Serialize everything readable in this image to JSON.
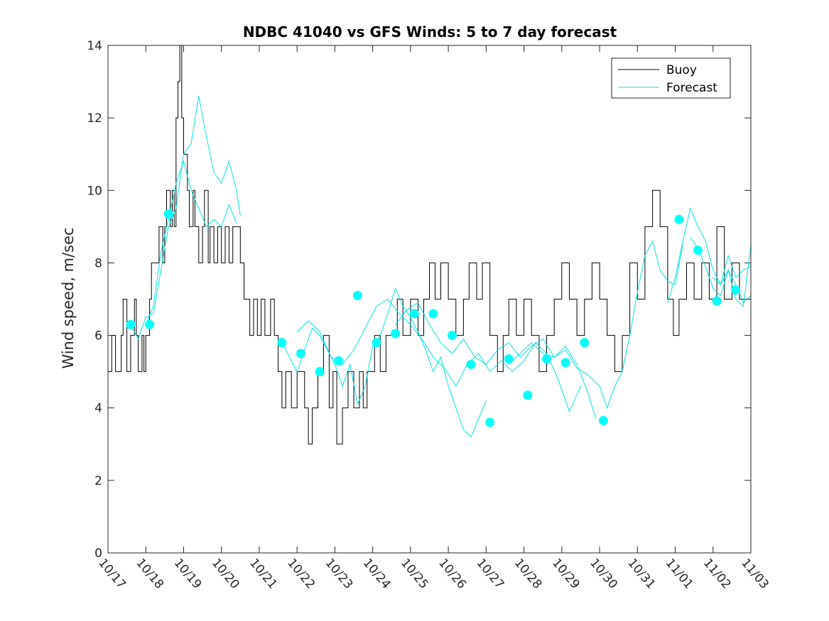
{
  "chart_data": {
    "type": "line",
    "title": "NDBC 41040 vs GFS Winds: 5 to 7 day forecast",
    "xlabel": "",
    "ylabel": "Wind speed, m/sec",
    "xlim": [
      0,
      17
    ],
    "ylim": [
      0,
      14
    ],
    "x_tick_labels": [
      "10/17",
      "10/18",
      "10/19",
      "10/20",
      "10/21",
      "10/22",
      "10/23",
      "10/24",
      "10/25",
      "10/26",
      "10/27",
      "10/28",
      "10/29",
      "10/30",
      "10/31",
      "11/01",
      "11/02",
      "11/03"
    ],
    "y_ticks": [
      0,
      2,
      4,
      6,
      8,
      10,
      12,
      14
    ],
    "legend": {
      "position": "top-right",
      "entries": [
        {
          "label": "Buoy",
          "color": "#000000"
        },
        {
          "label": "Forecast",
          "color": "#00e5e5"
        }
      ]
    },
    "colors": {
      "buoy": "#000000",
      "forecast": "#00e5e5",
      "marker": "#00ffff"
    },
    "series": [
      {
        "name": "Buoy",
        "points": [
          [
            0,
            5
          ],
          [
            0.1,
            6
          ],
          [
            0.2,
            5
          ],
          [
            0.35,
            6
          ],
          [
            0.4,
            7
          ],
          [
            0.5,
            5
          ],
          [
            0.6,
            6
          ],
          [
            0.7,
            7
          ],
          [
            0.75,
            6
          ],
          [
            0.8,
            5
          ],
          [
            0.9,
            6
          ],
          [
            0.95,
            5
          ],
          [
            1.0,
            6
          ],
          [
            1.1,
            7
          ],
          [
            1.15,
            8
          ],
          [
            1.25,
            8
          ],
          [
            1.35,
            9
          ],
          [
            1.45,
            8
          ],
          [
            1.5,
            9
          ],
          [
            1.55,
            10
          ],
          [
            1.65,
            9
          ],
          [
            1.7,
            10
          ],
          [
            1.75,
            9
          ],
          [
            1.8,
            12
          ],
          [
            1.85,
            13
          ],
          [
            1.9,
            14
          ],
          [
            1.95,
            12
          ],
          [
            2.0,
            11
          ],
          [
            2.1,
            10
          ],
          [
            2.15,
            9
          ],
          [
            2.25,
            10
          ],
          [
            2.3,
            9
          ],
          [
            2.4,
            8
          ],
          [
            2.5,
            9
          ],
          [
            2.55,
            10
          ],
          [
            2.65,
            8
          ],
          [
            2.7,
            9
          ],
          [
            2.8,
            8
          ],
          [
            2.9,
            9
          ],
          [
            3.0,
            8
          ],
          [
            3.1,
            9
          ],
          [
            3.2,
            8
          ],
          [
            3.3,
            9
          ],
          [
            3.5,
            8
          ],
          [
            3.6,
            7
          ],
          [
            3.75,
            6
          ],
          [
            3.85,
            7
          ],
          [
            3.95,
            6
          ],
          [
            4.05,
            7
          ],
          [
            4.15,
            6
          ],
          [
            4.3,
            7
          ],
          [
            4.4,
            6
          ],
          [
            4.5,
            5
          ],
          [
            4.6,
            4
          ],
          [
            4.7,
            5
          ],
          [
            4.85,
            4
          ],
          [
            5.0,
            5
          ],
          [
            5.2,
            4
          ],
          [
            5.3,
            3
          ],
          [
            5.4,
            4
          ],
          [
            5.55,
            5
          ],
          [
            5.7,
            6
          ],
          [
            5.85,
            4
          ],
          [
            5.95,
            5
          ],
          [
            6.05,
            3
          ],
          [
            6.2,
            4
          ],
          [
            6.35,
            5
          ],
          [
            6.5,
            4
          ],
          [
            6.65,
            5
          ],
          [
            6.75,
            4
          ],
          [
            6.85,
            5
          ],
          [
            7.05,
            6
          ],
          [
            7.2,
            5
          ],
          [
            7.35,
            6
          ],
          [
            7.5,
            6
          ],
          [
            7.65,
            7
          ],
          [
            7.8,
            6
          ],
          [
            8.0,
            7
          ],
          [
            8.2,
            6
          ],
          [
            8.35,
            7
          ],
          [
            8.5,
            8
          ],
          [
            8.65,
            7
          ],
          [
            8.8,
            8
          ],
          [
            9.0,
            7
          ],
          [
            9.2,
            6
          ],
          [
            9.4,
            7
          ],
          [
            9.55,
            8
          ],
          [
            9.75,
            7
          ],
          [
            9.9,
            8
          ],
          [
            10.1,
            6
          ],
          [
            10.3,
            5
          ],
          [
            10.45,
            6
          ],
          [
            10.6,
            7
          ],
          [
            10.8,
            6
          ],
          [
            11.0,
            7
          ],
          [
            11.2,
            6
          ],
          [
            11.4,
            5
          ],
          [
            11.6,
            6
          ],
          [
            11.8,
            7
          ],
          [
            12.0,
            8
          ],
          [
            12.2,
            7
          ],
          [
            12.4,
            6
          ],
          [
            12.6,
            7
          ],
          [
            12.8,
            8
          ],
          [
            13.0,
            7
          ],
          [
            13.2,
            6
          ],
          [
            13.4,
            5
          ],
          [
            13.6,
            6
          ],
          [
            13.8,
            8
          ],
          [
            14.0,
            7
          ],
          [
            14.2,
            9
          ],
          [
            14.4,
            10
          ],
          [
            14.6,
            9
          ],
          [
            14.8,
            7
          ],
          [
            14.95,
            6
          ],
          [
            15.1,
            7
          ],
          [
            15.3,
            8
          ],
          [
            15.5,
            7
          ],
          [
            15.7,
            8
          ],
          [
            15.9,
            7
          ],
          [
            16.1,
            9
          ],
          [
            16.3,
            7
          ],
          [
            16.5,
            8
          ],
          [
            16.7,
            7
          ],
          [
            16.85,
            7
          ],
          [
            17.0,
            7
          ]
        ]
      },
      {
        "name": "Forecast",
        "points": [
          [
            0.6,
            6.3
          ],
          [
            0.8,
            5.9
          ],
          [
            1.0,
            6.5
          ],
          [
            1.2,
            6.6
          ],
          [
            1.4,
            7.8
          ],
          [
            1.6,
            9.0
          ],
          [
            1.8,
            9.5
          ],
          [
            2.0,
            11.0
          ],
          [
            2.2,
            11.3
          ],
          [
            2.4,
            12.6
          ],
          [
            2.6,
            11.5
          ],
          [
            2.8,
            10.5
          ],
          [
            3.0,
            10.2
          ],
          [
            3.2,
            10.8
          ],
          [
            3.4,
            10.0
          ],
          [
            3.5,
            9.3
          ]
        ]
      },
      {
        "name": "Forecast",
        "points": [
          [
            1.0,
            6.3
          ],
          [
            1.2,
            6.8
          ],
          [
            1.4,
            8.3
          ],
          [
            1.6,
            9.2
          ],
          [
            1.8,
            10.2
          ],
          [
            2.0,
            10.8
          ],
          [
            2.2,
            10.0
          ],
          [
            2.4,
            9.5
          ],
          [
            2.6,
            9.0
          ],
          [
            2.8,
            9.2
          ],
          [
            3.0,
            9.0
          ],
          [
            3.2,
            9.6
          ],
          [
            3.4,
            9.1
          ]
        ]
      },
      {
        "name": "Forecast",
        "points": [
          [
            4.6,
            5.8
          ],
          [
            4.8,
            5.4
          ],
          [
            5.0,
            5.0
          ],
          [
            5.2,
            5.6
          ],
          [
            5.4,
            6.2
          ],
          [
            5.6,
            6.0
          ],
          [
            5.8,
            5.6
          ],
          [
            6.0,
            5.2
          ],
          [
            6.2,
            4.6
          ],
          [
            6.4,
            5.2
          ],
          [
            6.6,
            4.1
          ],
          [
            6.8,
            4.6
          ],
          [
            7.0,
            5.7
          ],
          [
            7.2,
            6.0
          ],
          [
            7.4,
            6.6
          ],
          [
            7.6,
            7.3
          ],
          [
            7.8,
            6.8
          ],
          [
            8.0,
            6.5
          ],
          [
            8.2,
            6.1
          ],
          [
            8.4,
            5.6
          ],
          [
            8.6,
            5.0
          ],
          [
            8.8,
            5.4
          ],
          [
            9.0,
            4.6
          ],
          [
            9.2,
            4.0
          ],
          [
            9.4,
            3.4
          ],
          [
            9.6,
            3.2
          ],
          [
            9.8,
            3.7
          ],
          [
            10.0,
            4.2
          ]
        ]
      },
      {
        "name": "Forecast",
        "points": [
          [
            5.0,
            6.1
          ],
          [
            5.3,
            6.4
          ],
          [
            5.6,
            6.1
          ],
          [
            5.9,
            5.4
          ],
          [
            6.2,
            5.2
          ],
          [
            6.5,
            5.6
          ],
          [
            6.8,
            6.2
          ],
          [
            7.1,
            6.8
          ],
          [
            7.4,
            7.0
          ],
          [
            7.7,
            6.6
          ],
          [
            8.0,
            6.3
          ],
          [
            8.3,
            5.9
          ],
          [
            8.6,
            5.4
          ],
          [
            8.9,
            5.1
          ],
          [
            9.2,
            4.6
          ],
          [
            9.5,
            5.2
          ],
          [
            9.8,
            5.5
          ],
          [
            10.1,
            5.0
          ],
          [
            10.4,
            5.3
          ],
          [
            10.7,
            5.0
          ],
          [
            11.0,
            5.3
          ],
          [
            11.3,
            5.8
          ],
          [
            11.6,
            5.5
          ],
          [
            11.9,
            4.8
          ],
          [
            12.2,
            3.9
          ],
          [
            12.5,
            4.6
          ]
        ]
      },
      {
        "name": "Forecast",
        "points": [
          [
            7.6,
            6.3
          ],
          [
            7.9,
            6.7
          ],
          [
            8.2,
            6.9
          ],
          [
            8.5,
            6.3
          ],
          [
            8.8,
            5.8
          ],
          [
            9.1,
            5.5
          ],
          [
            9.4,
            5.9
          ],
          [
            9.7,
            5.4
          ],
          [
            10.0,
            5.2
          ],
          [
            10.3,
            5.6
          ],
          [
            10.6,
            5.8
          ],
          [
            10.9,
            5.4
          ],
          [
            11.2,
            5.7
          ],
          [
            11.5,
            5.9
          ],
          [
            11.8,
            5.4
          ],
          [
            12.1,
            5.7
          ],
          [
            12.4,
            5.2
          ],
          [
            12.7,
            4.4
          ],
          [
            12.9,
            3.7
          ]
        ]
      },
      {
        "name": "Forecast",
        "points": [
          [
            10.6,
            5.2
          ],
          [
            10.9,
            5.5
          ],
          [
            11.2,
            5.8
          ],
          [
            11.5,
            5.5
          ],
          [
            11.8,
            5.4
          ],
          [
            12.1,
            5.6
          ],
          [
            12.4,
            5.1
          ],
          [
            12.7,
            4.9
          ],
          [
            13.0,
            4.6
          ],
          [
            13.2,
            4.0
          ],
          [
            13.4,
            4.6
          ],
          [
            13.6,
            5.0
          ],
          [
            13.8,
            6.0
          ],
          [
            14.0,
            7.2
          ],
          [
            14.2,
            8.2
          ],
          [
            14.4,
            8.6
          ],
          [
            14.6,
            7.8
          ],
          [
            14.8,
            7.5
          ],
          [
            15.0,
            7.4
          ],
          [
            15.2,
            8.5
          ]
        ]
      },
      {
        "name": "Forecast",
        "points": [
          [
            14.8,
            6.9
          ],
          [
            15.0,
            7.6
          ],
          [
            15.2,
            8.6
          ],
          [
            15.4,
            9.5
          ],
          [
            15.6,
            9.0
          ],
          [
            15.8,
            8.6
          ],
          [
            16.0,
            7.8
          ],
          [
            16.2,
            7.4
          ],
          [
            16.4,
            8.2
          ],
          [
            16.6,
            7.6
          ],
          [
            16.8,
            7.8
          ],
          [
            17.0,
            7.9
          ]
        ]
      },
      {
        "name": "Forecast",
        "points": [
          [
            15.4,
            8.7
          ],
          [
            15.6,
            8.4
          ],
          [
            15.8,
            7.9
          ],
          [
            16.0,
            7.3
          ],
          [
            16.2,
            7.1
          ],
          [
            16.4,
            7.8
          ],
          [
            16.6,
            7.0
          ],
          [
            16.8,
            6.8
          ],
          [
            17.0,
            8.5
          ]
        ]
      },
      {
        "name": "Forecast",
        "points": [
          [
            16.0,
            7.6
          ],
          [
            16.2,
            7.4
          ],
          [
            16.4,
            7.8
          ],
          [
            16.6,
            7.4
          ],
          [
            16.8,
            6.9
          ],
          [
            17.0,
            7.1
          ]
        ]
      }
    ],
    "markers": [
      [
        0.6,
        6.3
      ],
      [
        1.1,
        6.3
      ],
      [
        1.6,
        9.35
      ],
      [
        4.6,
        5.8
      ],
      [
        5.1,
        5.5
      ],
      [
        5.6,
        5.0
      ],
      [
        6.1,
        5.3
      ],
      [
        6.6,
        7.1
      ],
      [
        7.1,
        5.8
      ],
      [
        7.6,
        6.05
      ],
      [
        8.1,
        6.6
      ],
      [
        8.6,
        6.6
      ],
      [
        9.1,
        6.0
      ],
      [
        9.6,
        5.2
      ],
      [
        10.1,
        3.6
      ],
      [
        10.6,
        5.35
      ],
      [
        11.1,
        4.35
      ],
      [
        11.6,
        5.35
      ],
      [
        12.1,
        5.25
      ],
      [
        12.6,
        5.8
      ],
      [
        13.1,
        3.65
      ],
      [
        15.1,
        9.2
      ],
      [
        15.6,
        8.35
      ],
      [
        16.1,
        6.95
      ],
      [
        16.6,
        7.25
      ]
    ]
  }
}
